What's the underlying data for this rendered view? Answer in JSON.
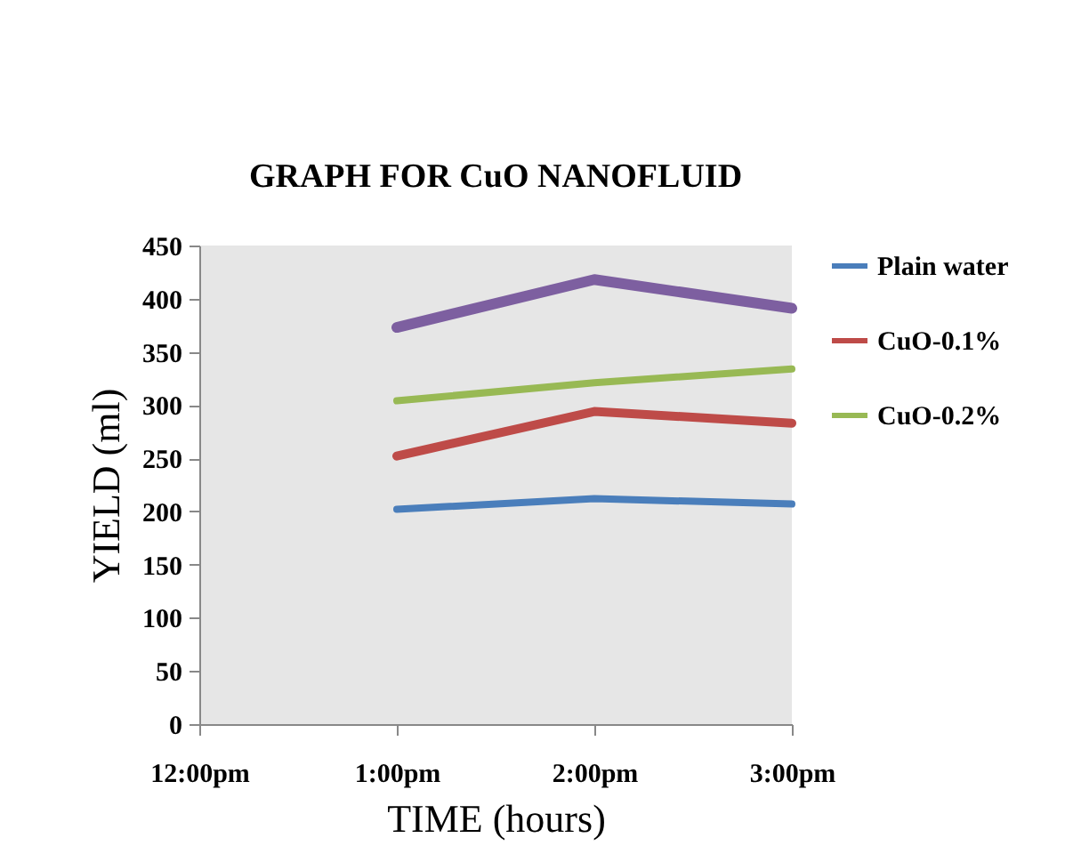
{
  "chart_data": {
    "type": "line",
    "title": "GRAPH FOR CuO NANOFLUID",
    "xlabel": "TIME (hours)",
    "ylabel": "YIELD (ml)",
    "x": [
      13,
      14,
      15
    ],
    "xlim": [
      12,
      15
    ],
    "xticks": [
      {
        "value": 12,
        "label": "12:00pm"
      },
      {
        "value": 13,
        "label": "1:00pm"
      },
      {
        "value": 14,
        "label": "2:00pm"
      },
      {
        "value": 15,
        "label": "3:00pm"
      }
    ],
    "ylim": [
      0,
      450
    ],
    "yticks": [
      0,
      50,
      100,
      150,
      200,
      250,
      300,
      350,
      400,
      450
    ],
    "grid": false,
    "legend": "right",
    "marker": "none",
    "line_style": "solid",
    "series": [
      {
        "name": "Plain water",
        "color": "#4a7ebb",
        "values": [
          202,
          212,
          207
        ]
      },
      {
        "name": "CuO-0.1%",
        "color": "#be4b48",
        "values": [
          252,
          294,
          283
        ]
      },
      {
        "name": "CuO-0.2%",
        "color": "#98b954",
        "values": [
          304,
          321,
          334
        ]
      },
      {
        "color": "#7d5fa0",
        "values": [
          373,
          418,
          391
        ]
      }
    ]
  }
}
